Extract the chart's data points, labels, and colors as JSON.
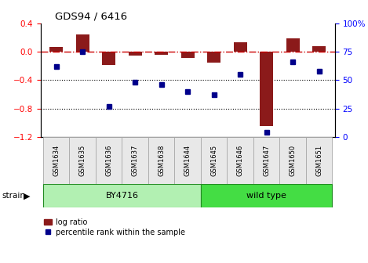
{
  "title": "GDS94 / 6416",
  "samples": [
    "GSM1634",
    "GSM1635",
    "GSM1636",
    "GSM1637",
    "GSM1638",
    "GSM1644",
    "GSM1645",
    "GSM1646",
    "GSM1647",
    "GSM1650",
    "GSM1651"
  ],
  "log_ratio": [
    0.07,
    0.25,
    -0.18,
    -0.05,
    -0.04,
    -0.08,
    -0.15,
    0.14,
    -1.05,
    0.19,
    0.08
  ],
  "percentile_rank": [
    62,
    75,
    27,
    48,
    46,
    40,
    37,
    55,
    4,
    66,
    58
  ],
  "by4716_count": 6,
  "bar_color": "#8b1a1a",
  "dot_color": "#00008b",
  "hline_color": "#cc0000",
  "dotted_line_color": "#000000",
  "ylim_left": [
    -1.2,
    0.4
  ],
  "ylim_right": [
    0,
    100
  ],
  "yticks_left": [
    -1.2,
    -0.8,
    -0.4,
    0.0,
    0.4
  ],
  "yticks_right": [
    0,
    25,
    50,
    75,
    100
  ],
  "ylabel_right_labels": [
    "0",
    "25",
    "50",
    "75",
    "100%"
  ],
  "bg_color": "#ffffff",
  "by4716_color": "#b2f0b2",
  "wildtype_color": "#44dd44",
  "strain_border_color": "#228B22",
  "legend_items": [
    "log ratio",
    "percentile rank within the sample"
  ],
  "grid_dotted_at": [
    -0.4,
    -0.8
  ],
  "bar_width": 0.5
}
